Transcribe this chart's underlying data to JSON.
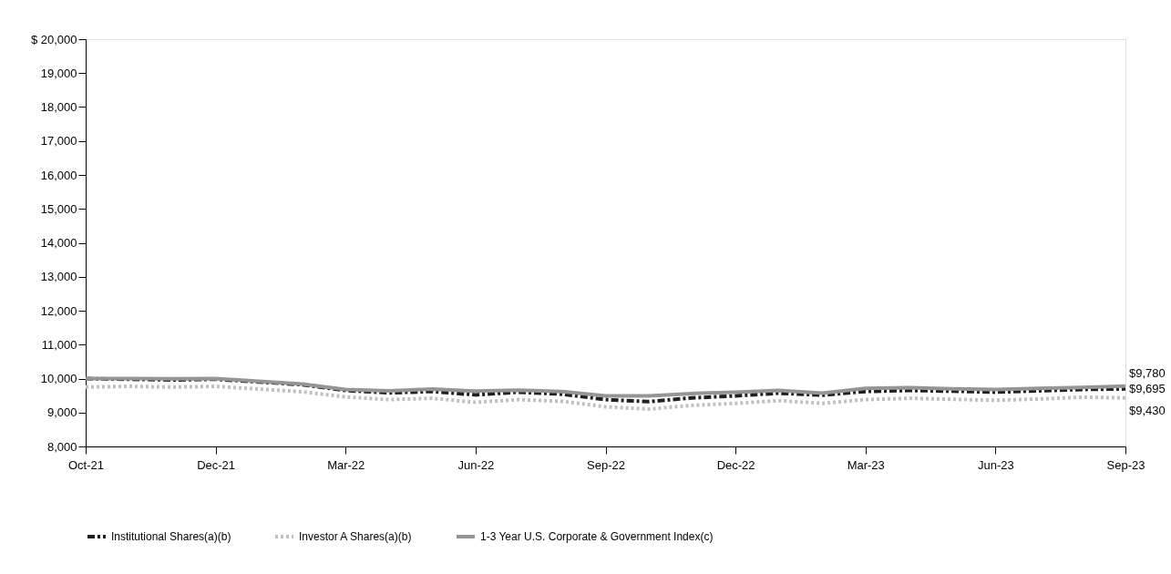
{
  "chart_data": {
    "type": "line",
    "categories": [
      "Oct-21",
      null,
      null,
      "Dec-21",
      null,
      null,
      "Mar-22",
      null,
      null,
      "Jun-22",
      null,
      null,
      "Sep-22",
      null,
      null,
      "Dec-22",
      null,
      null,
      "Mar-23",
      null,
      null,
      "Jun-23",
      null,
      null,
      "Sep-23"
    ],
    "series": [
      {
        "name": "Institutional Shares(a)(b)",
        "color": "#231f20",
        "line_style": "dashed",
        "values": [
          10000,
          9980,
          9960,
          9980,
          9900,
          9820,
          9650,
          9580,
          9620,
          9520,
          9600,
          9540,
          9380,
          9320,
          9430,
          9490,
          9570,
          9510,
          9620,
          9650,
          9630,
          9600,
          9640,
          9680,
          9695
        ]
      },
      {
        "name": "Investor A Shares(a)(b)",
        "color": "#c0c0c0",
        "line_style": "dotted",
        "values": [
          9750,
          9770,
          9750,
          9770,
          9690,
          9610,
          9460,
          9380,
          9420,
          9300,
          9380,
          9330,
          9170,
          9100,
          9210,
          9270,
          9350,
          9270,
          9380,
          9420,
          9390,
          9360,
          9400,
          9450,
          9430
        ]
      },
      {
        "name": "1-3 Year U.S. Corporate & Government Index(c)",
        "color": "#939598",
        "line_style": "solid",
        "values": [
          10000,
          10000,
          9990,
          10000,
          9920,
          9840,
          9680,
          9640,
          9690,
          9630,
          9660,
          9620,
          9490,
          9490,
          9560,
          9600,
          9650,
          9570,
          9710,
          9730,
          9700,
          9680,
          9710,
          9740,
          9780
        ]
      }
    ],
    "ylim": [
      8000,
      20000
    ],
    "yticks": [
      {
        "value": 8000,
        "label": "8,000"
      },
      {
        "value": 9000,
        "label": "9,000"
      },
      {
        "value": 10000,
        "label": "10,000"
      },
      {
        "value": 11000,
        "label": "11,000"
      },
      {
        "value": 12000,
        "label": "12,000"
      },
      {
        "value": 13000,
        "label": "13,000"
      },
      {
        "value": 14000,
        "label": "14,000"
      },
      {
        "value": 15000,
        "label": "15,000"
      },
      {
        "value": 16000,
        "label": "16,000"
      },
      {
        "value": 17000,
        "label": "17,000"
      },
      {
        "value": 18000,
        "label": "18,000"
      },
      {
        "value": 19000,
        "label": "19,000"
      },
      {
        "value": 20000,
        "label": "$ 20,000"
      }
    ],
    "annotations": [
      {
        "text": "$9,780",
        "x": "Sep-23",
        "y": 9780
      },
      {
        "text": "$9,695",
        "x": "Sep-23",
        "y": 9695
      },
      {
        "text": "$9,430",
        "x": "Sep-23",
        "y": 9430
      }
    ],
    "grid": false,
    "legend": "bottom",
    "marker": "none"
  }
}
